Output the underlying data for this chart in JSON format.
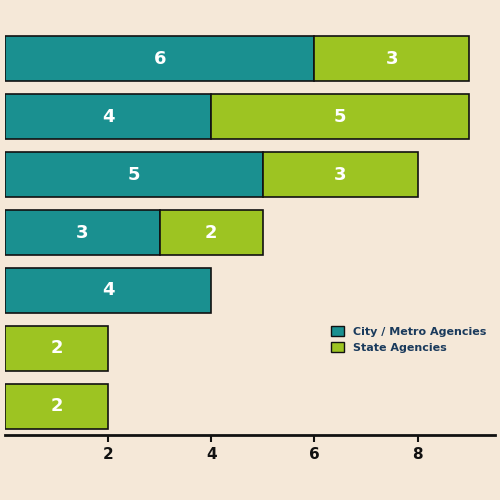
{
  "rows": [
    {
      "city": 6,
      "state": 3
    },
    {
      "city": 4,
      "state": 5
    },
    {
      "city": 5,
      "state": 3
    },
    {
      "city": 3,
      "state": 2
    },
    {
      "city": 4,
      "state": 0
    },
    {
      "city": 0,
      "state": 2
    },
    {
      "city": 0,
      "state": 2
    }
  ],
  "city_color": "#1a9090",
  "state_color": "#9dc422",
  "background_color": "#f5e8d8",
  "text_color_white": "#ffffff",
  "bar_height": 0.78,
  "bar_edge_color": "#111111",
  "xlim": [
    0,
    9.5
  ],
  "xticks": [
    2,
    4,
    6,
    8
  ],
  "legend_city": "City / Metro Agencies",
  "legend_state": "State Agencies",
  "legend_text_color": "#1a3a5c",
  "legend_fontsize": 8,
  "label_fontsize": 13,
  "tick_label_color": "#1a5cb0",
  "tick_label_fontsize": 11
}
